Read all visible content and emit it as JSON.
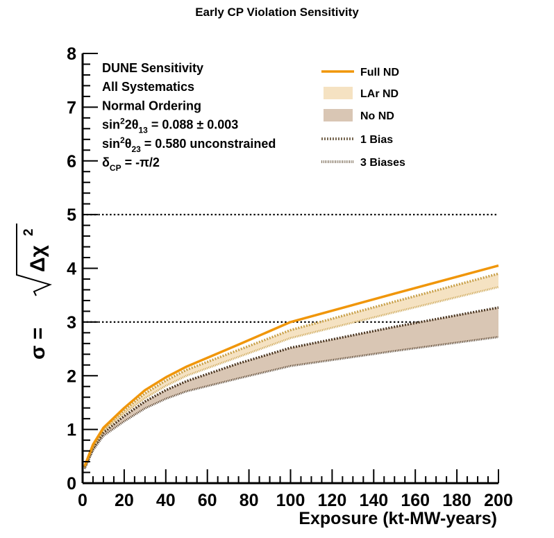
{
  "chart_data": {
    "type": "line",
    "title": "Early CP Violation Sensitivity",
    "xlabel": "Exposure (kt-MW-years)",
    "ylabel": {
      "prefix": "σ = ",
      "radicand": "Δχ",
      "sup": "2"
    },
    "xlim": [
      0,
      200
    ],
    "ylim": [
      0,
      8
    ],
    "x_ticks": [
      "0",
      "20",
      "40",
      "60",
      "80",
      "100",
      "120",
      "140",
      "160",
      "180",
      "200"
    ],
    "y_ticks": [
      "0",
      "1",
      "2",
      "3",
      "4",
      "5",
      "6",
      "7",
      "8"
    ],
    "reference_lines": [
      3,
      5
    ],
    "info_text": [
      {
        "text": "DUNE Sensitivity"
      },
      {
        "text": "All Systematics"
      },
      {
        "text": "Normal Ordering"
      },
      {
        "parts": [
          {
            "t": "sin"
          },
          {
            "t": "2",
            "sup": true
          },
          {
            "t": "2θ"
          },
          {
            "t": "13",
            "sub": true
          },
          {
            "t": " = 0.088 ± 0.003"
          }
        ]
      },
      {
        "parts": [
          {
            "t": "sin"
          },
          {
            "t": "2",
            "sup": true
          },
          {
            "t": "θ"
          },
          {
            "t": "23",
            "sub": true
          },
          {
            "t": " = 0.580 unconstrained"
          }
        ]
      },
      {
        "parts": [
          {
            "t": "δ"
          },
          {
            "t": "CP",
            "sub": true
          },
          {
            "t": " = -π/2"
          }
        ]
      }
    ],
    "legend": [
      {
        "label": "Full ND",
        "style": "line",
        "color": "#f0960a"
      },
      {
        "label": "LAr ND",
        "style": "band",
        "color": "#f5e2c2"
      },
      {
        "label": "No ND",
        "style": "band",
        "color": "#d9c6b4"
      },
      {
        "label": "1 Bias",
        "style": "dotted",
        "color": "#7a6a55"
      },
      {
        "label": "3 Biases",
        "style": "finedotted",
        "color": "#7a6a55"
      }
    ],
    "colors": {
      "full_nd": "#f0960a",
      "lar_band": "#f5e2c2",
      "lar_dots": "#c8a04a",
      "nond_band": "#d9c6b4",
      "nond_dots": "#4a3520",
      "refline": "#000000"
    },
    "series": [
      {
        "name": "Full ND",
        "x": [
          1,
          5,
          10,
          20,
          30,
          40,
          50,
          75,
          100,
          150,
          200
        ],
        "values": [
          0.32,
          0.72,
          1.03,
          1.4,
          1.73,
          1.97,
          2.17,
          2.58,
          3.0,
          3.53,
          4.05
        ]
      },
      {
        "name": "LAr ND",
        "x": [
          1,
          5,
          10,
          20,
          30,
          40,
          50,
          75,
          100,
          150,
          200
        ],
        "upper": [
          0.31,
          0.7,
          1.01,
          1.36,
          1.67,
          1.91,
          2.11,
          2.48,
          2.85,
          3.38,
          3.9
        ],
        "lower": [
          0.29,
          0.66,
          0.97,
          1.3,
          1.58,
          1.81,
          2.0,
          2.35,
          2.7,
          3.18,
          3.65
        ]
      },
      {
        "name": "No ND",
        "x": [
          1,
          5,
          10,
          20,
          30,
          40,
          50,
          75,
          100,
          150,
          200
        ],
        "upper": [
          0.29,
          0.65,
          0.94,
          1.25,
          1.52,
          1.73,
          1.9,
          2.23,
          2.52,
          2.91,
          3.27
        ],
        "lower": [
          0.27,
          0.61,
          0.88,
          1.15,
          1.39,
          1.57,
          1.71,
          1.95,
          2.18,
          2.46,
          2.72
        ]
      }
    ]
  }
}
